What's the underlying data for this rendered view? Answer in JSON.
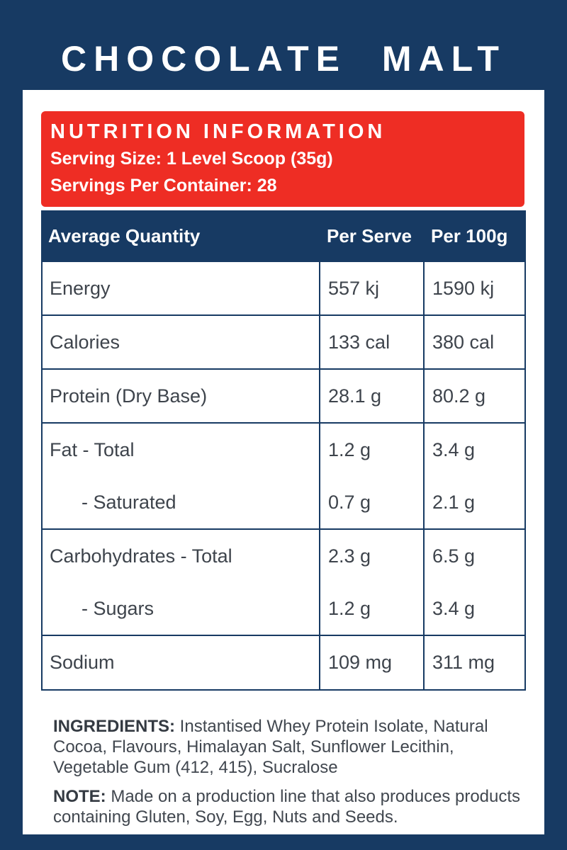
{
  "page": {
    "title": "CHOCOLATE MALT"
  },
  "panel": {
    "header": {
      "title": "NUTRITION INFORMATION",
      "serving_size": "Serving Size: 1 Level Scoop (35g)",
      "servings_per_container": "Servings Per Container: 28"
    },
    "table": {
      "columns": [
        "Average Quantity",
        "Per Serve",
        "Per 100g"
      ],
      "rows": [
        {
          "label": "Energy",
          "per_serve": "557 kj",
          "per_100g": "1590 kj"
        },
        {
          "label": "Calories",
          "per_serve": "133 cal",
          "per_100g": "380 cal"
        },
        {
          "label": "Protein (Dry Base)",
          "per_serve": "28.1 g",
          "per_100g": "80.2 g"
        },
        {
          "label": "Fat - Total",
          "per_serve": "1.2 g",
          "per_100g": "3.4 g"
        },
        {
          "label": "- Saturated",
          "per_serve": "0.7 g",
          "per_100g": "2.1 g"
        },
        {
          "label": "Carbohydrates - Total",
          "per_serve": "2.3 g",
          "per_100g": "6.5 g"
        },
        {
          "label": "- Sugars",
          "per_serve": "1.2 g",
          "per_100g": "3.4 g"
        },
        {
          "label": "Sodium",
          "per_serve": "109 mg",
          "per_100g": "311 mg"
        }
      ]
    },
    "ingredients": {
      "label": "INGREDIENTS:",
      "text": " Instantised Whey Protein Isolate, Natural Cocoa, Flavours, Himalayan Salt, Sunflower Lecithin, Vegetable Gum (412, 415), Sucralose"
    },
    "note": {
      "label": "NOTE:",
      "text": " Made on a production line that also produces products containing Gluten, Soy, Egg, Nuts and Seeds."
    }
  },
  "colors": {
    "background_navy": "#173a63",
    "accent_red": "#ee2d24",
    "card_white": "#ffffff",
    "table_text": "#3e444c"
  }
}
